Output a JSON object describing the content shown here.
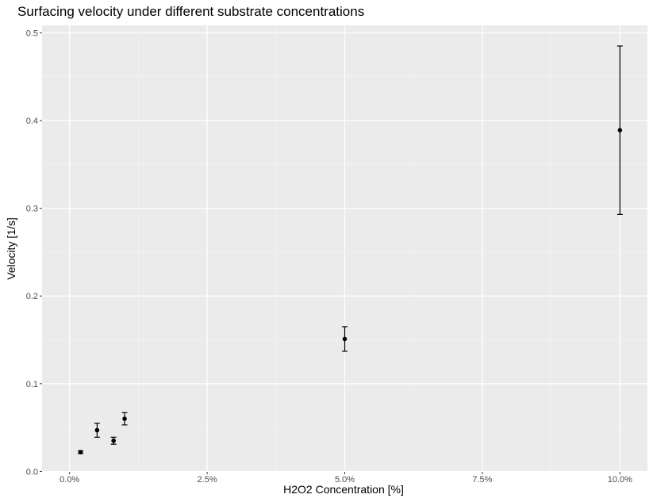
{
  "chart_data": {
    "type": "scatter",
    "title": "Surfacing velocity under different substrate concentrations",
    "xlabel": "H2O2 Concentration [%]",
    "ylabel": "Velocity [1/s]",
    "xlim": [
      -0.5,
      10.5
    ],
    "ylim": [
      -0.0005,
      0.5085
    ],
    "x_ticks": [
      0.0,
      2.5,
      5.0,
      7.5,
      10.0
    ],
    "x_tick_labels": [
      "0.0%",
      "2.5%",
      "5.0%",
      "7.5%",
      "10.0%"
    ],
    "y_ticks": [
      0.0,
      0.1,
      0.2,
      0.3,
      0.4,
      0.5
    ],
    "y_tick_labels": [
      "0.0",
      "0.1",
      "0.2",
      "0.3",
      "0.4",
      "0.5"
    ],
    "grid": true,
    "error_bars": true,
    "points": [
      {
        "x": 0.2,
        "y": 0.022,
        "ymin": 0.0205,
        "ymax": 0.0235
      },
      {
        "x": 0.5,
        "y": 0.047,
        "ymin": 0.039,
        "ymax": 0.055
      },
      {
        "x": 0.8,
        "y": 0.035,
        "ymin": 0.031,
        "ymax": 0.039
      },
      {
        "x": 1.0,
        "y": 0.06,
        "ymin": 0.053,
        "ymax": 0.067
      },
      {
        "x": 5.0,
        "y": 0.151,
        "ymin": 0.137,
        "ymax": 0.165
      },
      {
        "x": 10.0,
        "y": 0.389,
        "ymin": 0.293,
        "ymax": 0.485
      }
    ],
    "colors": {
      "panel_background": "#ebebeb",
      "grid_major": "#ffffff",
      "grid_minor": "#f5f5f5",
      "tick_label": "#4d4d4d",
      "point": "#000000"
    }
  }
}
